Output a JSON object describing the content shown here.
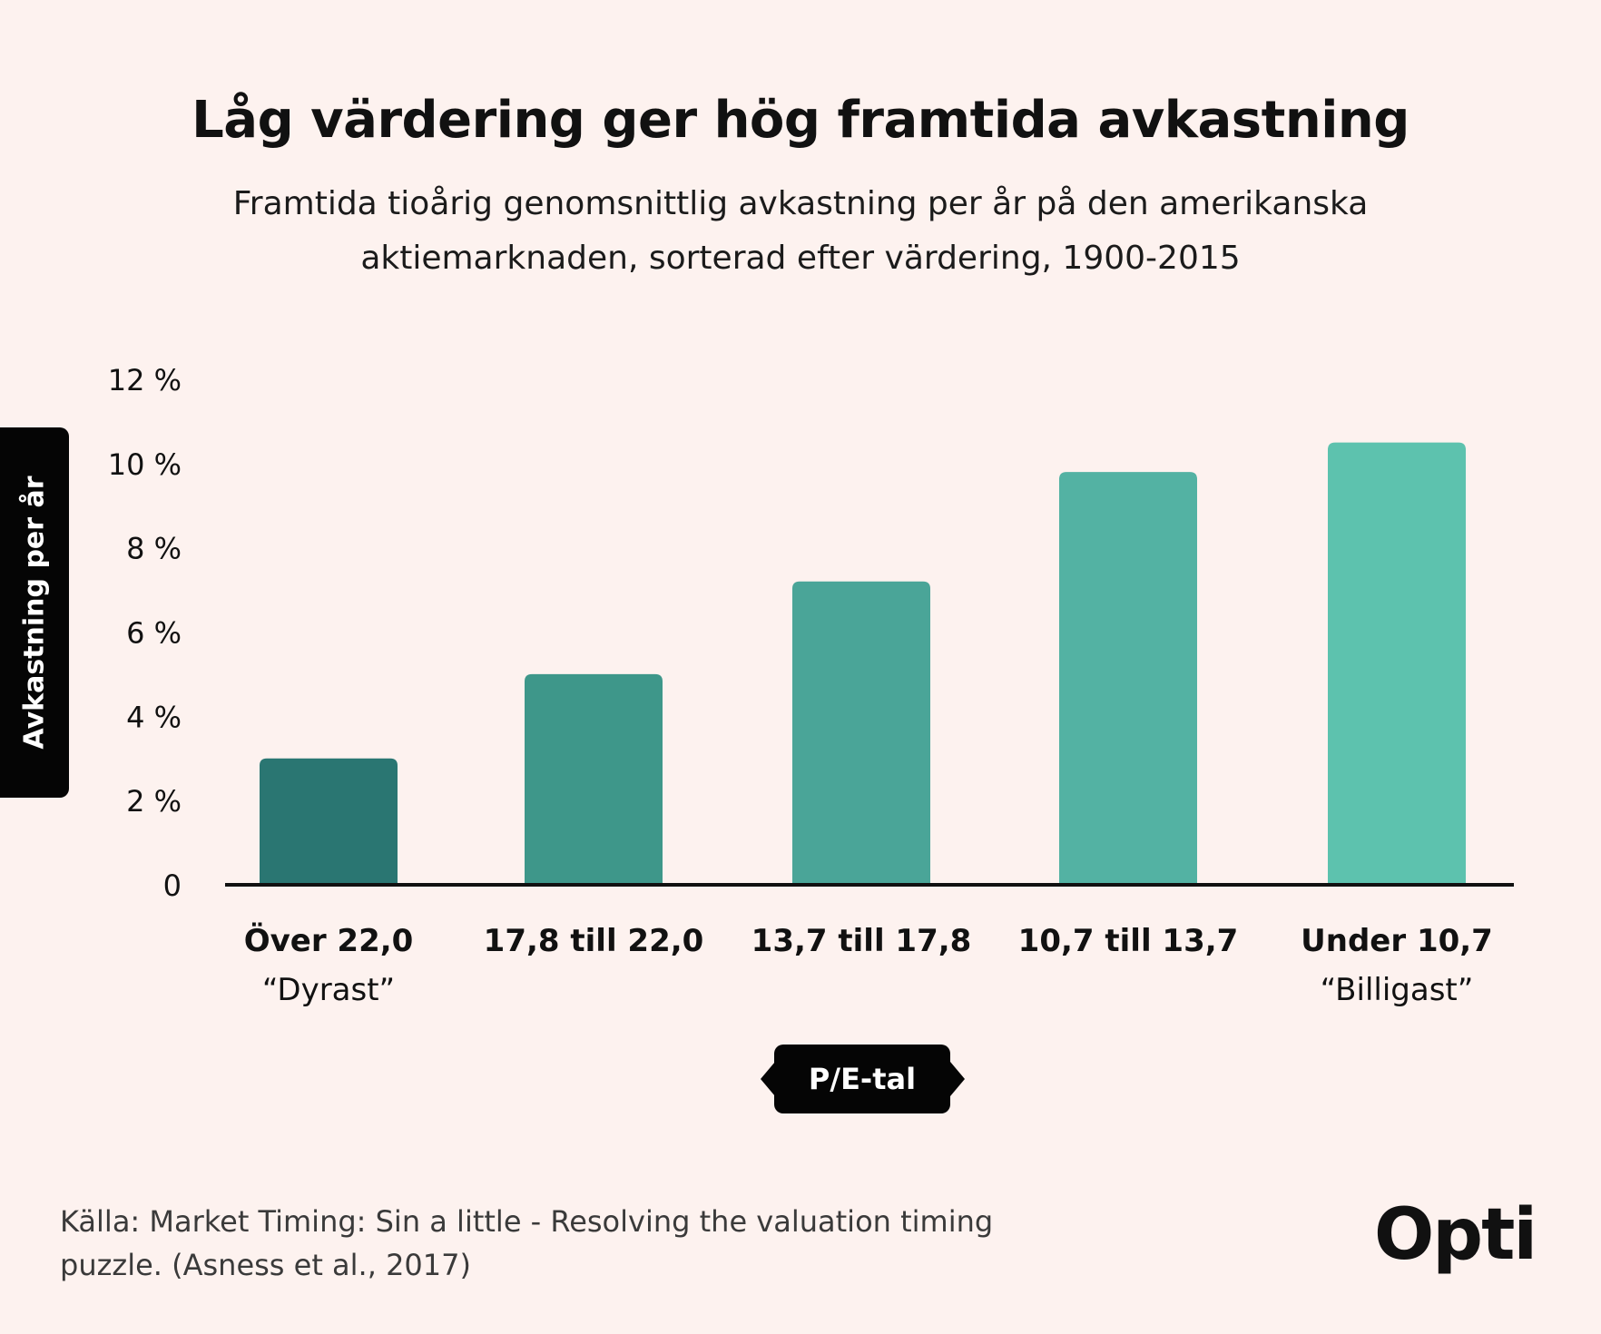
{
  "title": "Låg värdering ger hög framtida avkastning",
  "subtitle_line1": "Framtida tioårig genomsnittlig avkastning per år på den amerikanska",
  "subtitle_line2": "aktiemarknaden, sorterad efter värdering, 1900-2015",
  "source_line1": "Källa: Market Timing: Sin a little - Resolving the valuation timing",
  "source_line2": "puzzle. (Asness et al., 2017)",
  "logo_text": "Opti",
  "chart_data": {
    "type": "bar",
    "ylabel": "Avkastning per år",
    "xlabel": "P/E-tal",
    "ylim": [
      0,
      12
    ],
    "yticks": [
      0,
      2,
      4,
      6,
      8,
      10,
      12
    ],
    "ytick_labels": [
      "0",
      "2 %",
      "4 %",
      "6 %",
      "8 %",
      "10 %",
      "12 %"
    ],
    "categories": [
      "Över 22,0",
      "17,8 till 22,0",
      "13,7 till 17,8",
      "10,7 till 13,7",
      "Under 10,7"
    ],
    "category_sublabels": [
      "“Dyrast”",
      "",
      "",
      "",
      "“Billigast”"
    ],
    "values": [
      3.0,
      5.0,
      7.2,
      9.8,
      10.5
    ],
    "colors": [
      "#2a7672",
      "#3e978a",
      "#4aa598",
      "#53b2a3",
      "#5dc2ae"
    ],
    "grid": false,
    "legend": "none"
  }
}
